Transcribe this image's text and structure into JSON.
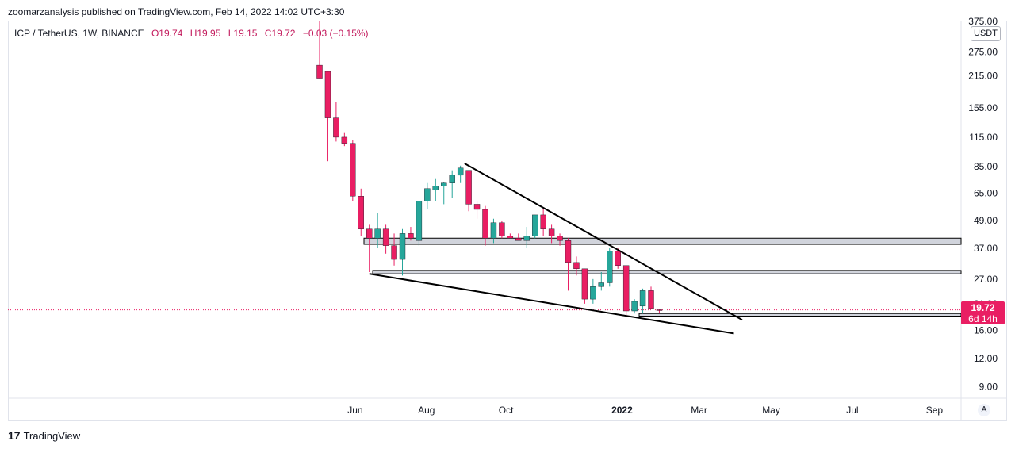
{
  "header": {
    "published": "zoomarzanalysis published on TradingView.com, Feb 14, 2022 14:02 UTC+3:30"
  },
  "legend": {
    "symbol": "ICP / TetherUS, 1W, BINANCE",
    "open": "O19.74",
    "high": "H19.95",
    "low": "L19.15",
    "close": "C19.72",
    "change": "−0.03 (−0.15%)"
  },
  "currency_badge": "USDT",
  "price_tag": {
    "price": "19.72",
    "countdown": "6d 14h"
  },
  "auto_button": "A",
  "footer": {
    "logo_text": "TradingView"
  },
  "colors": {
    "up": "#26a69a",
    "down": "#e91e63",
    "trendline": "#000000",
    "zone": "#d1d4dc",
    "price_line": "#e91e63"
  },
  "chart_data": {
    "type": "candlestick",
    "symbol": "ICP / TetherUS",
    "interval": "1W",
    "exchange": "BINANCE",
    "y_scale": "log",
    "ylim": [
      8,
      375
    ],
    "y_ticks": [
      "375.00",
      "275.00",
      "215.00",
      "155.00",
      "115.00",
      "85.00",
      "65.00",
      "49.00",
      "37.00",
      "27.00",
      "21.00",
      "16.00",
      "12.00",
      "9.00"
    ],
    "x_ticks": [
      "Jun",
      "Aug",
      "Oct",
      "2022",
      "Mar",
      "May",
      "Jul",
      "Sep"
    ],
    "candles": [
      {
        "o": 240,
        "h": 375,
        "l": 210,
        "c": 210
      },
      {
        "o": 225,
        "h": 225,
        "l": 90,
        "c": 140
      },
      {
        "o": 140,
        "h": 165,
        "l": 110,
        "c": 115
      },
      {
        "o": 115,
        "h": 120,
        "l": 105,
        "c": 108
      },
      {
        "o": 108,
        "h": 112,
        "l": 60,
        "c": 63
      },
      {
        "o": 63,
        "h": 68,
        "l": 42,
        "c": 45
      },
      {
        "o": 45,
        "h": 47,
        "l": 29,
        "c": 41
      },
      {
        "o": 41,
        "h": 53,
        "l": 37,
        "c": 45
      },
      {
        "o": 45,
        "h": 47,
        "l": 35,
        "c": 38
      },
      {
        "o": 38,
        "h": 43,
        "l": 31,
        "c": 33
      },
      {
        "o": 33,
        "h": 45,
        "l": 28,
        "c": 43
      },
      {
        "o": 43,
        "h": 46,
        "l": 40,
        "c": 41
      },
      {
        "o": 40,
        "h": 60,
        "l": 38,
        "c": 60
      },
      {
        "o": 60,
        "h": 72,
        "l": 55,
        "c": 68
      },
      {
        "o": 67,
        "h": 75,
        "l": 60,
        "c": 70
      },
      {
        "o": 70,
        "h": 73,
        "l": 58,
        "c": 72
      },
      {
        "o": 72,
        "h": 82,
        "l": 62,
        "c": 78
      },
      {
        "o": 78,
        "h": 86,
        "l": 72,
        "c": 84
      },
      {
        "o": 82,
        "h": 82,
        "l": 54,
        "c": 58
      },
      {
        "o": 58,
        "h": 60,
        "l": 50,
        "c": 55
      },
      {
        "o": 55,
        "h": 57,
        "l": 38,
        "c": 41
      },
      {
        "o": 41,
        "h": 50,
        "l": 39,
        "c": 48
      },
      {
        "o": 48,
        "h": 49,
        "l": 41,
        "c": 42
      },
      {
        "o": 42,
        "h": 43,
        "l": 41,
        "c": 41
      },
      {
        "o": 41,
        "h": 43,
        "l": 40,
        "c": 40
      },
      {
        "o": 40,
        "h": 46,
        "l": 37,
        "c": 42
      },
      {
        "o": 42,
        "h": 52,
        "l": 41,
        "c": 52
      },
      {
        "o": 52,
        "h": 55,
        "l": 42,
        "c": 45
      },
      {
        "o": 45,
        "h": 47,
        "l": 39,
        "c": 42
      },
      {
        "o": 42,
        "h": 43,
        "l": 38,
        "c": 40
      },
      {
        "o": 40,
        "h": 41,
        "l": 24,
        "c": 32
      },
      {
        "o": 32,
        "h": 34,
        "l": 28,
        "c": 30
      },
      {
        "o": 30,
        "h": 30,
        "l": 21,
        "c": 22
      },
      {
        "o": 22,
        "h": 27,
        "l": 21,
        "c": 25
      },
      {
        "o": 25,
        "h": 29,
        "l": 24,
        "c": 26
      },
      {
        "o": 26,
        "h": 37,
        "l": 25,
        "c": 36
      },
      {
        "o": 36,
        "h": 37,
        "l": 30,
        "c": 31
      },
      {
        "o": 31,
        "h": 31,
        "l": 18.5,
        "c": 19.5
      },
      {
        "o": 19.5,
        "h": 22,
        "l": 19,
        "c": 21.5
      },
      {
        "o": 20.5,
        "h": 24.5,
        "l": 19,
        "c": 24
      },
      {
        "o": 24,
        "h": 25,
        "l": 20,
        "c": 20
      },
      {
        "o": 19.74,
        "h": 19.95,
        "l": 19.15,
        "c": 19.72
      }
    ],
    "horizontal_zones": [
      [
        38.5,
        41
      ],
      [
        28.5,
        29.5
      ],
      [
        18.5,
        19
      ]
    ],
    "trendlines": [
      {
        "from": {
          "bar": 17.5,
          "price": 88
        },
        "to": {
          "bar": 51,
          "price": 17.8
        }
      },
      {
        "from": {
          "bar": 6,
          "price": 28.5
        },
        "to": {
          "bar": 50,
          "price": 15.5
        }
      }
    ],
    "last_price": 19.72
  }
}
